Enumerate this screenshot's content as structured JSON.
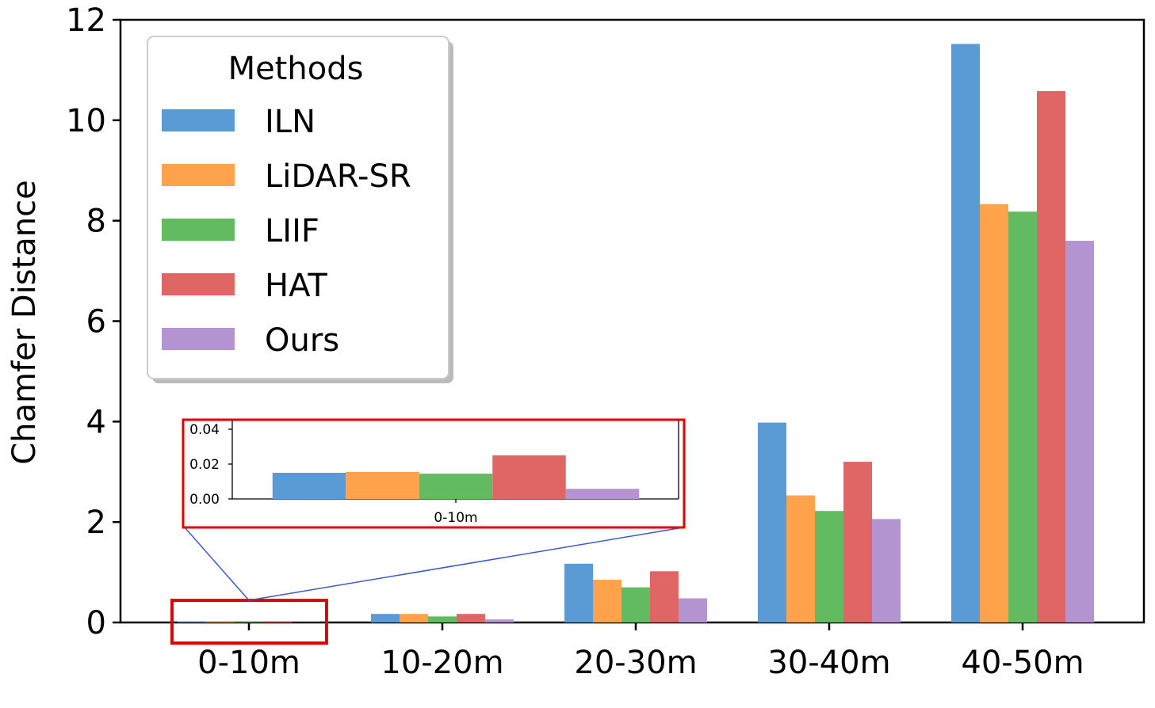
{
  "chart_data": {
    "type": "bar",
    "categories": [
      "0-10m",
      "10-20m",
      "20-30m",
      "30-40m",
      "40-50m"
    ],
    "ylabel": "Chamfer Distance",
    "xlabel": "",
    "ylim": [
      0,
      12
    ],
    "yticks": [
      "0",
      "2",
      "4",
      "6",
      "8",
      "10",
      "12"
    ],
    "grid": false,
    "legend": {
      "title": "Methods",
      "placement": "top-left"
    },
    "series": [
      {
        "name": "ILN",
        "color": "#5b9bd5",
        "values": [
          0.015,
          0.17,
          1.17,
          3.98,
          11.52
        ]
      },
      {
        "name": "LiDAR-SR",
        "color": "#ffa24c",
        "values": [
          0.0155,
          0.17,
          0.85,
          2.53,
          8.33
        ]
      },
      {
        "name": "LIIF",
        "color": "#63bb61",
        "values": [
          0.0145,
          0.12,
          0.7,
          2.22,
          8.18
        ]
      },
      {
        "name": "HAT",
        "color": "#e06666",
        "values": [
          0.025,
          0.17,
          1.02,
          3.2,
          10.58
        ]
      },
      {
        "name": "Ours",
        "color": "#b393d0",
        "values": [
          0.0058,
          0.06,
          0.48,
          2.06,
          7.6
        ]
      }
    ],
    "inset": {
      "category": "0-10m",
      "ylim": [
        0,
        0.045
      ],
      "yticks": [
        "0.00",
        "0.02",
        "0.04"
      ],
      "highlight_color": "#e00000",
      "connector_color": "#3b5bc7"
    }
  }
}
